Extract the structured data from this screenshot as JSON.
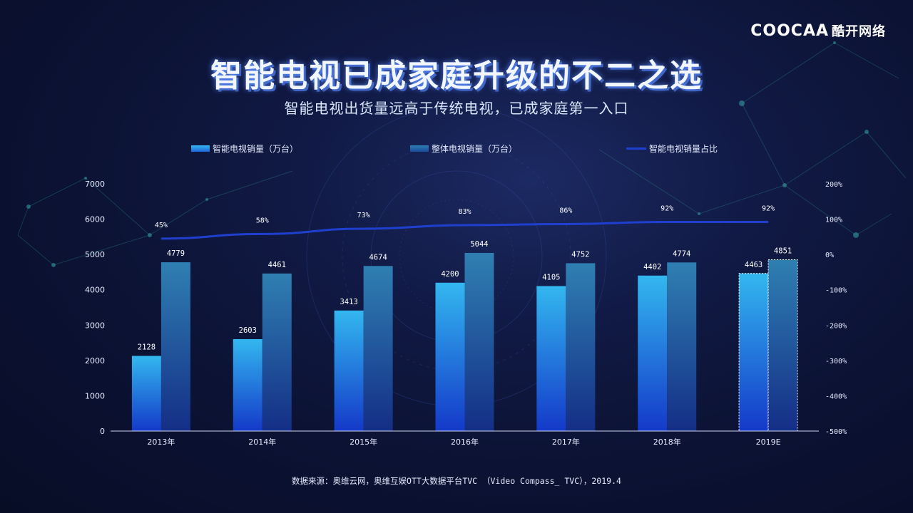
{
  "logo": {
    "brand": "COOCAA",
    "brand_cn": "酷开网络"
  },
  "title": "智能电视已成家庭升级的不二之选",
  "subtitle": "智能电视出货量远高于传统电视，已成家庭第一入口",
  "source": "数据来源：奥维云网，奥维互娱OTT大数据平台TVC （Video Compass_ TVC），2019.4",
  "colors": {
    "smart_bar_top": "#33b7ef",
    "smart_bar_bottom": "#1439c9",
    "total_bar_top": "#2f7fb2",
    "total_bar_bottom": "#142e86",
    "line": "#1f3fcf",
    "estimate_outline": "#ffffff"
  },
  "chart_data": {
    "type": "bar",
    "categories": [
      "2013年",
      "2014年",
      "2015年",
      "2016年",
      "2017年",
      "2018年",
      "2019E"
    ],
    "series": [
      {
        "name": "智能电视销量（万台）",
        "type": "bar",
        "values": [
          2128,
          2603,
          3413,
          4200,
          4105,
          4402,
          4463
        ]
      },
      {
        "name": "整体电视销量（万台）",
        "type": "bar",
        "values": [
          4779,
          4461,
          4674,
          5044,
          4752,
          4774,
          4851
        ]
      },
      {
        "name": "智能电视销量占比",
        "type": "line",
        "axis": "right",
        "values": [
          45,
          58,
          73,
          83,
          86,
          92,
          92
        ],
        "labels": [
          "45%",
          "58%",
          "73%",
          "83%",
          "86%",
          "92%",
          "92%"
        ]
      }
    ],
    "y_left": {
      "min": 0,
      "max": 7000,
      "ticks": [
        "0",
        "1000",
        "2000",
        "3000",
        "4000",
        "5000",
        "6000",
        "7000"
      ]
    },
    "y_right": {
      "min": -500,
      "max": 200,
      "ticks": [
        "-500%",
        "-400%",
        "-300%",
        "-200%",
        "-100%",
        "0%",
        "100%",
        "200%"
      ]
    },
    "estimated_categories": [
      "2019E"
    ],
    "legend_position": "top",
    "grid": false
  }
}
